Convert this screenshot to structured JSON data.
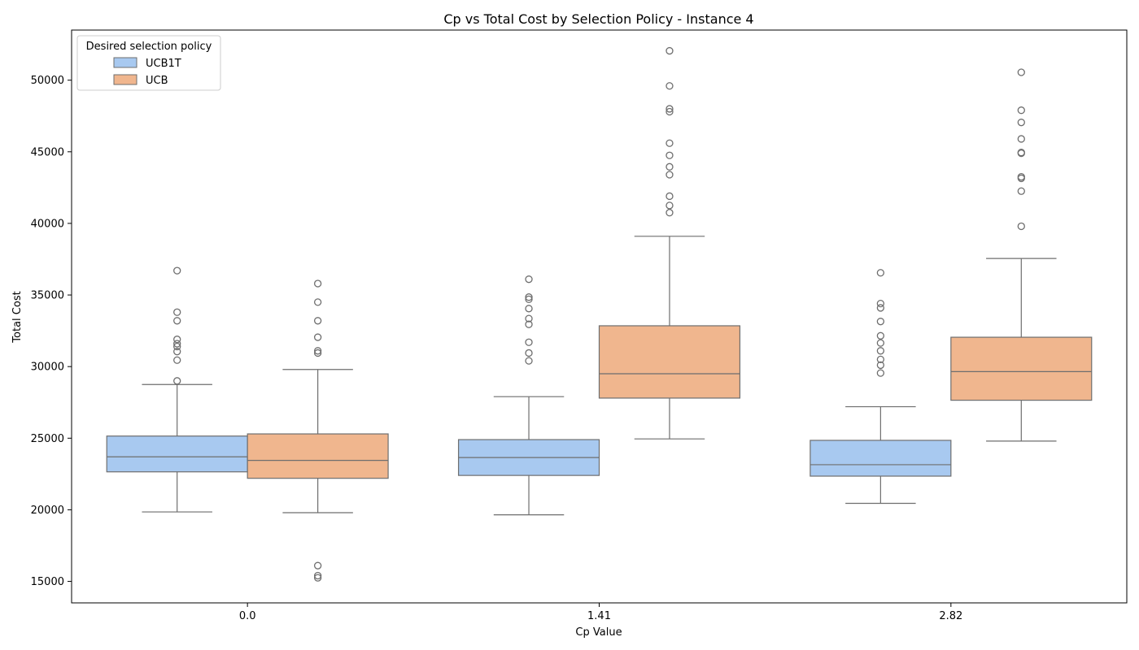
{
  "chart_data": {
    "type": "box",
    "title": "Cp vs Total Cost by Selection Policy - Instance 4",
    "xlabel": "Cp Value",
    "ylabel": "Total Cost",
    "categories": [
      "0.0",
      "1.41",
      "2.82"
    ],
    "ylim": [
      13500,
      53500
    ],
    "yticks": [
      15000,
      20000,
      25000,
      30000,
      35000,
      40000,
      45000,
      50000
    ],
    "grid": false,
    "legend": {
      "title": "Desired selection policy",
      "position": "top-left",
      "entries": [
        "UCB1T",
        "UCB"
      ]
    },
    "series": [
      {
        "name": "UCB1T",
        "color": "#a8c9f0",
        "boxes": [
          {
            "category": "0.0",
            "whisker_low": 19850,
            "q1": 22650,
            "median": 23700,
            "q3": 25150,
            "whisker_high": 28750,
            "outliers": [
              36700,
              33800,
              33200,
              31900,
              31600,
              31400,
              31050,
              30450,
              29000
            ]
          },
          {
            "category": "1.41",
            "whisker_low": 19650,
            "q1": 22400,
            "median": 23650,
            "q3": 24900,
            "whisker_high": 27900,
            "outliers": [
              36100,
              34850,
              34700,
              34050,
              33350,
              32950,
              31700,
              30950,
              30400
            ]
          },
          {
            "category": "2.82",
            "whisker_low": 20450,
            "q1": 22350,
            "median": 23150,
            "q3": 24850,
            "whisker_high": 27200,
            "outliers": [
              36550,
              34400,
              34100,
              33150,
              32150,
              31650,
              31100,
              30500,
              30100,
              29550
            ]
          }
        ]
      },
      {
        "name": "UCB",
        "color": "#f0b68e",
        "boxes": [
          {
            "category": "0.0",
            "whisker_low": 19800,
            "q1": 22200,
            "median": 23450,
            "q3": 25300,
            "whisker_high": 29800,
            "outliers": [
              35800,
              34500,
              33200,
              32050,
              31100,
              30950,
              16100,
              15400,
              15250
            ]
          },
          {
            "category": "1.41",
            "whisker_low": 24950,
            "q1": 27800,
            "median": 29500,
            "q3": 32850,
            "whisker_high": 39100,
            "outliers": [
              52050,
              49600,
              48000,
              47800,
              45600,
              44750,
              43950,
              43400,
              41900,
              41250,
              40750
            ]
          },
          {
            "category": "2.82",
            "whisker_low": 24800,
            "q1": 27650,
            "median": 29650,
            "q3": 32050,
            "whisker_high": 37550,
            "outliers": [
              50550,
              47900,
              47050,
              45900,
              44950,
              44900,
              43250,
              43150,
              42250,
              39800
            ]
          }
        ]
      }
    ]
  }
}
